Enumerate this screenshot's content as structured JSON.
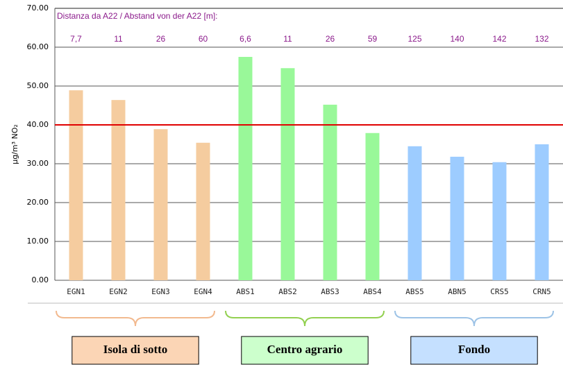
{
  "chart_data": {
    "type": "bar",
    "annotation": "Distanza da A22 / Abstand von der A22 [m]:",
    "y_label": "µg/m³ NO₂",
    "ylim": [
      0,
      70
    ],
    "yticks": [
      {
        "value": 0,
        "label": "0.00"
      },
      {
        "value": 10,
        "label": "10.00"
      },
      {
        "value": 20,
        "label": "20.00"
      },
      {
        "value": 30,
        "label": "30.00"
      },
      {
        "value": 40,
        "label": "40.00"
      },
      {
        "value": 50,
        "label": "50.00"
      },
      {
        "value": 60,
        "label": "60.00"
      },
      {
        "value": 70,
        "label": "70.00"
      }
    ],
    "grid": true,
    "reference_line": {
      "value": 40,
      "color": "#e00000"
    },
    "groups": [
      {
        "name": "Isola di sotto",
        "color": "#f5cc9f",
        "brace_color": "#f2b98e",
        "box_color": "#fbd5b5",
        "categories": [
          "EGN1",
          "EGN2",
          "EGN3",
          "EGN4"
        ],
        "values": [
          48.9,
          46.4,
          38.9,
          35.4
        ],
        "distances": [
          "7,7",
          "11",
          "26",
          "60"
        ]
      },
      {
        "name": "Centro agrario",
        "color": "#99f899",
        "brace_color": "#92d050",
        "box_color": "#ccffcc",
        "categories": [
          "ABS1",
          "ABS2",
          "ABS3",
          "ABS4"
        ],
        "values": [
          57.5,
          54.6,
          45.2,
          37.9
        ],
        "distances": [
          "6,6",
          "11",
          "26",
          "59"
        ]
      },
      {
        "name": "Fondo",
        "color": "#9dccff",
        "brace_color": "#9dc3e6",
        "box_color": "#c5e0ff",
        "categories": [
          "ABS5",
          "ABN5",
          "CRS5",
          "CRN5"
        ],
        "values": [
          34.5,
          31.8,
          30.4,
          35.0
        ],
        "distances": [
          "125",
          "140",
          "142",
          "132"
        ]
      }
    ]
  }
}
